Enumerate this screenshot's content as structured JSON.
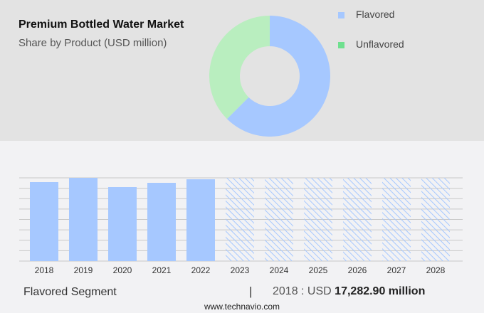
{
  "title": "Premium Bottled Water Market",
  "subtitle": "Share by Product (USD million)",
  "legend": [
    {
      "label": "Flavored",
      "color": "#a6c8ff"
    },
    {
      "label": "Unflavored",
      "color": "#6fe08f"
    }
  ],
  "footer": {
    "segment": "Flavored Segment",
    "separator": "|",
    "year_label": "2018 : USD",
    "value": "17,282.90 million",
    "source": "www.technavio.com"
  },
  "chart_data": [
    {
      "type": "pie",
      "donut": true,
      "slices": [
        {
          "name": "Flavored",
          "value": 62.5,
          "color": "#a6c8ff"
        },
        {
          "name": "Unflavored",
          "value": 37.5,
          "color": "#b9eebf"
        }
      ]
    },
    {
      "type": "bar",
      "categories": [
        "2018",
        "2019",
        "2020",
        "2021",
        "2022",
        "2023",
        "2024",
        "2025",
        "2026",
        "2027",
        "2028"
      ],
      "values": [
        17282.9,
        18218,
        16193,
        17127,
        17906,
        null,
        null,
        null,
        null,
        null,
        null
      ],
      "forecast": [
        "2023",
        "2024",
        "2025",
        "2026",
        "2027",
        "2028"
      ],
      "ylim": [
        0,
        18218
      ],
      "grid": true,
      "color": "#a6c8ff"
    }
  ]
}
